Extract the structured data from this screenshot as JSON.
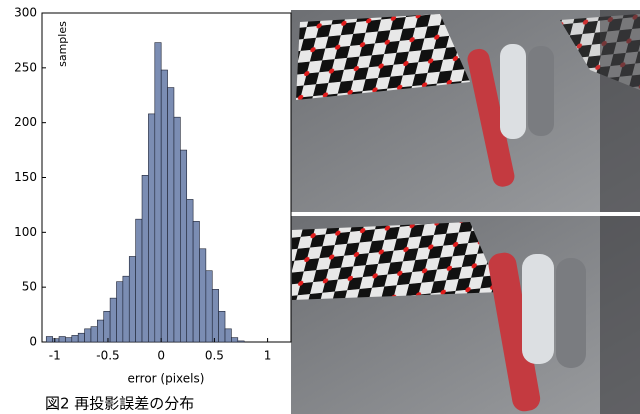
{
  "chart_data": {
    "type": "histogram",
    "xlabel": "error (pixels)",
    "ylabel": "samples",
    "bins": [
      -1.08,
      -1.02,
      -0.96,
      -0.9,
      -0.84,
      -0.78,
      -0.72,
      -0.66,
      -0.6,
      -0.54,
      -0.48,
      -0.42,
      -0.36,
      -0.3,
      -0.24,
      -0.18,
      -0.12,
      -0.06,
      0,
      0.06,
      0.12,
      0.18,
      0.24,
      0.3,
      0.36,
      0.42,
      0.48,
      0.54,
      0.6,
      0.66,
      0.72,
      0.78
    ],
    "values": [
      5,
      3,
      5,
      4,
      6,
      8,
      12,
      14,
      20,
      28,
      40,
      55,
      60,
      78,
      112,
      152,
      208,
      273,
      248,
      232,
      205,
      175,
      130,
      110,
      85,
      65,
      48,
      28,
      12,
      4,
      1
    ],
    "color": "#7b8db3",
    "xlim": [
      -1.12,
      1.22
    ],
    "xticks": [
      -1,
      -0.5,
      0,
      0.5,
      1
    ],
    "ylim": [
      0,
      300
    ],
    "yticks": [
      0,
      50,
      100,
      150,
      200,
      250,
      300
    ]
  },
  "caption": "図2 再投影誤差の分布"
}
